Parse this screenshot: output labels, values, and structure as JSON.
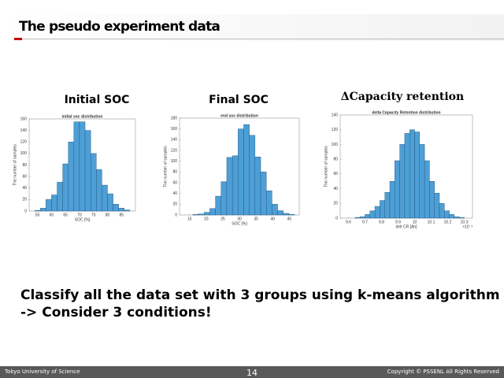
{
  "header": {
    "title": "The pseudo experiment data"
  },
  "chart_data": [
    {
      "type": "histogram",
      "heading": "Initial SOC",
      "title": "initial soc distribution",
      "xlabel": "SOC [%]",
      "ylabel": "The number of samples",
      "color": "#4d9fd6",
      "bins": [
        54,
        56,
        58,
        60,
        62,
        64,
        66,
        68,
        70,
        72,
        74,
        76,
        78,
        80,
        82,
        84,
        86,
        88
      ],
      "values": [
        1,
        5,
        20,
        28,
        50,
        82,
        120,
        155,
        155,
        140,
        100,
        72,
        45,
        30,
        12,
        5,
        2
      ],
      "xlim": [
        52,
        90
      ],
      "xticks": [
        55,
        60,
        65,
        70,
        75,
        80,
        85
      ],
      "ylim": [
        0,
        160
      ],
      "yticks": [
        0,
        20,
        40,
        60,
        80,
        100,
        120,
        140,
        160
      ]
    },
    {
      "type": "histogram",
      "heading": "Final SOC",
      "title": "end soc distribution",
      "xlabel": "SOC [%]",
      "ylabel": "The number of samples",
      "color": "#4d9fd6",
      "bins": [
        16,
        17.7,
        19.4,
        21.1,
        22.8,
        24.5,
        26.2,
        27.9,
        29.6,
        31.3,
        33,
        34.7,
        36.4,
        38.1,
        39.8,
        41.5,
        43.2,
        44.9,
        46.6
      ],
      "values": [
        1,
        2,
        5,
        12,
        35,
        62,
        107,
        110,
        160,
        168,
        148,
        108,
        80,
        45,
        20,
        8,
        3,
        1
      ],
      "xlim": [
        12,
        48
      ],
      "xticks": [
        15,
        20,
        25,
        30,
        35,
        40,
        45
      ],
      "ylim": [
        0,
        180
      ],
      "yticks": [
        0,
        20,
        40,
        60,
        80,
        100,
        120,
        140,
        160,
        180
      ]
    },
    {
      "type": "histogram",
      "heading": "ΔCapacity retention",
      "title": "delta Capacity Retention distribution",
      "xlabel": "delt CR [Ah]",
      "x_exponent": "×10⁻³",
      "ylabel": "The number of samples",
      "color": "#4d9fd6",
      "bins": [
        9.64,
        9.67,
        9.7,
        9.73,
        9.76,
        9.79,
        9.82,
        9.85,
        9.88,
        9.91,
        9.94,
        9.97,
        10.0,
        10.03,
        10.06,
        10.09,
        10.12,
        10.15,
        10.18,
        10.21,
        10.24,
        10.27,
        10.3
      ],
      "values": [
        1,
        2,
        5,
        10,
        16,
        24,
        35,
        50,
        78,
        100,
        115,
        120,
        117,
        100,
        78,
        50,
        34,
        20,
        10,
        5,
        2,
        1
      ],
      "xlim": [
        9.55,
        10.35
      ],
      "xticks": [
        9.6,
        9.7,
        9.8,
        9.9,
        10,
        10.1,
        10.2,
        10.3
      ],
      "ylim": [
        0,
        140
      ],
      "yticks": [
        0,
        20,
        40,
        60,
        80,
        100,
        120,
        140
      ]
    }
  ],
  "body": {
    "lines": [
      "Classify all the data set with 3 groups using k-means algorithm",
      "-> Consider 3 conditions!"
    ]
  },
  "footer": {
    "left": "Tokyo University of Science",
    "page": "14",
    "right": "Copyright © PSSENL All Rights Reserved"
  }
}
